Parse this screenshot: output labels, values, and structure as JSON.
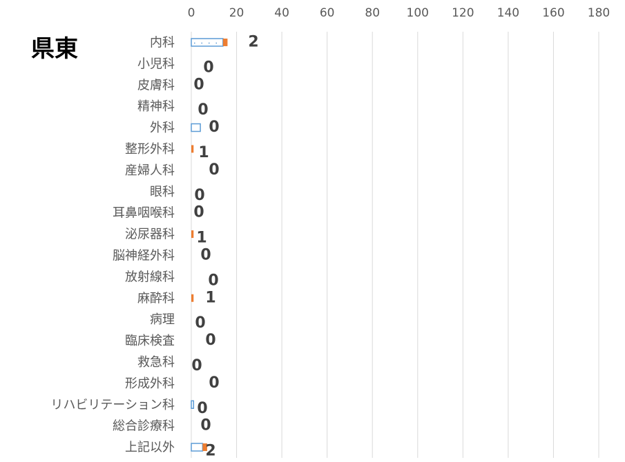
{
  "chart_data": {
    "type": "bar",
    "orientation": "horizontal",
    "title": "県東",
    "categories": [
      "内科",
      "小児科",
      "皮膚科",
      "精神科",
      "外科",
      "整形外科",
      "産婦人科",
      "眼科",
      "耳鼻咽喉科",
      "泌尿器科",
      "脳神経外科",
      "放射線科",
      "麻酔科",
      "病理",
      "臨床検査",
      "救急科",
      "形成外科",
      "リハビリテーション科",
      "総合診療科",
      "上記以外"
    ],
    "series": [
      {
        "color": "#5b9bd5",
        "values": [
          14,
          0,
          0,
          0,
          4,
          0,
          0,
          0,
          0,
          0,
          0,
          0,
          0,
          0,
          0,
          0,
          0,
          1,
          0,
          5
        ]
      },
      {
        "color": "#ed7d31",
        "values": [
          2,
          0,
          0,
          0,
          0,
          1,
          0,
          0,
          0,
          1,
          0,
          0,
          1,
          0,
          0,
          0,
          0,
          0,
          0,
          2
        ]
      }
    ],
    "data_labels": [
      "2",
      "0",
      "0",
      "0",
      "0",
      "1",
      "0",
      "0",
      "0",
      "1",
      "0",
      "0",
      "1",
      "0",
      "0",
      "0",
      "0",
      "0",
      "0",
      "2"
    ],
    "xlim": [
      0,
      180
    ],
    "x_ticks": [
      "0",
      "20",
      "40",
      "60",
      "80",
      "100",
      "120",
      "140",
      "160",
      "180"
    ],
    "grid": true,
    "axis_position": "top"
  }
}
